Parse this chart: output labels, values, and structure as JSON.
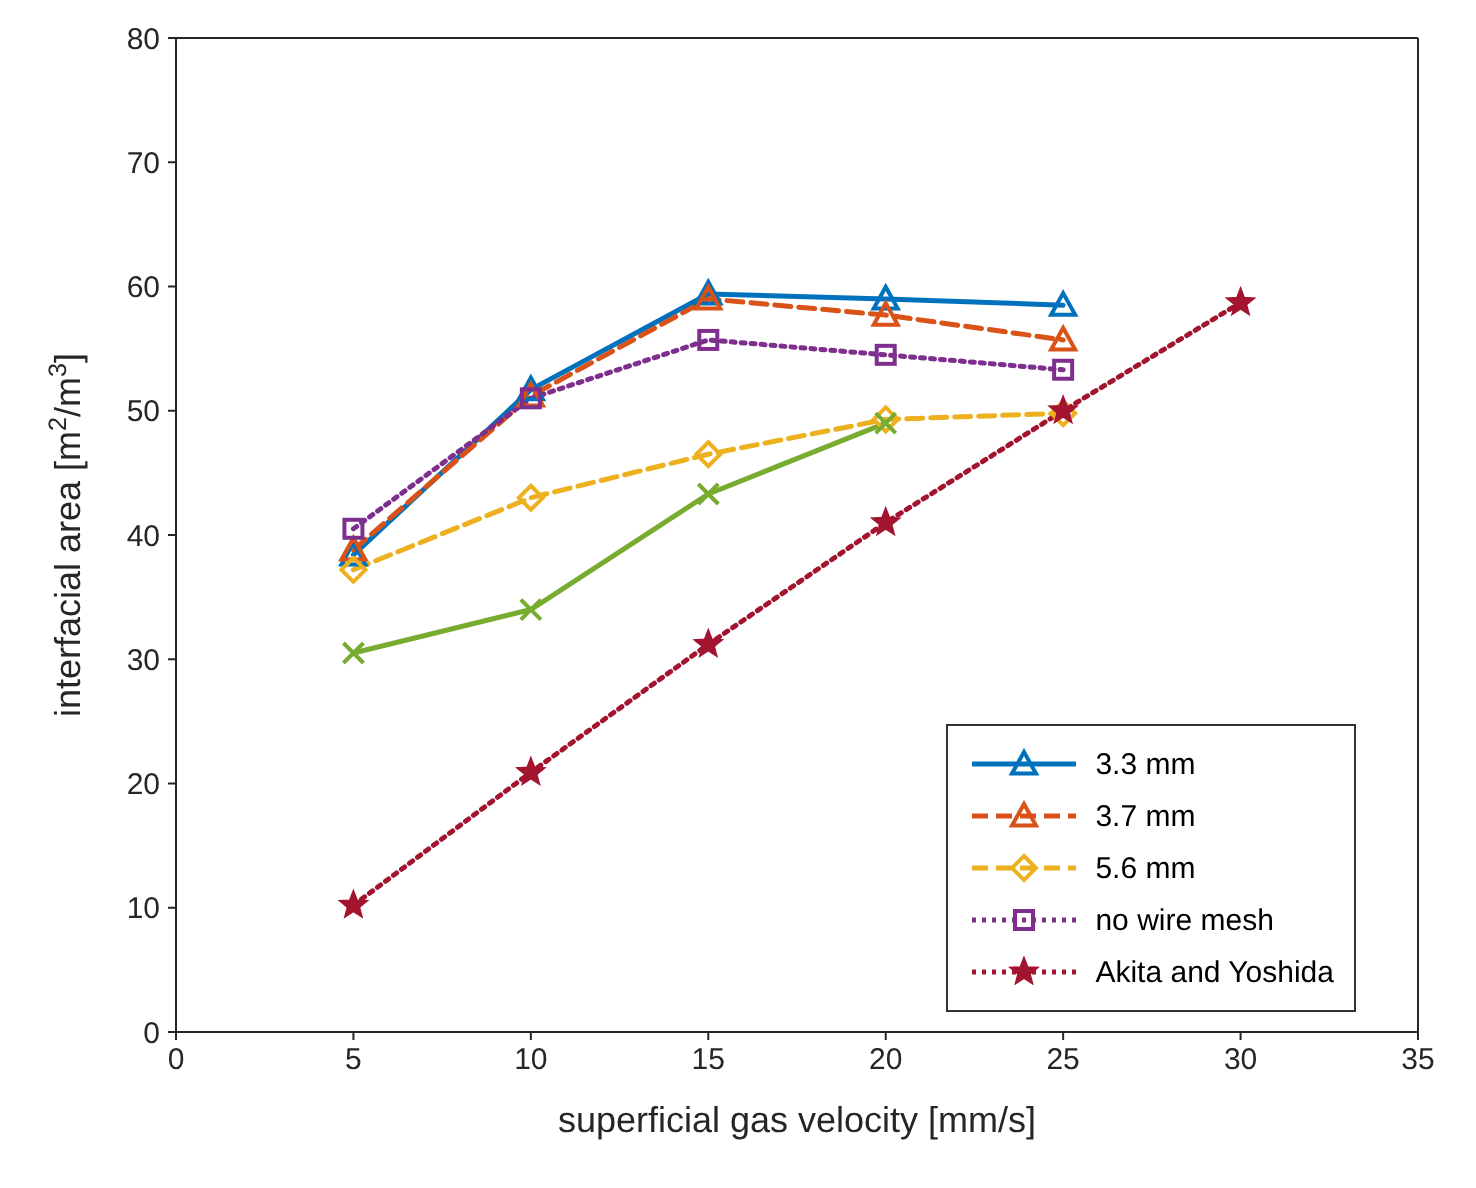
{
  "chart_data": {
    "type": "line",
    "xlabel": "superficial gas velocity [mm/s]",
    "ylabel": "interfacial area [m$^{2}$/m$^{3}$]",
    "x": [
      5,
      10,
      15,
      20,
      25,
      30
    ],
    "series": [
      {
        "name": "3.3 mm",
        "color": "#0072bd",
        "marker": "triangle",
        "line_style": "solid",
        "values": [
          38.4,
          51.7,
          59.4,
          59.0,
          58.5,
          null
        ]
      },
      {
        "name": "3.7 mm",
        "color": "#d95319",
        "marker": "triangle",
        "line_style": "dashed",
        "values": [
          38.8,
          51.2,
          59.0,
          57.7,
          55.7,
          null
        ]
      },
      {
        "name": "5.6 mm",
        "color": "#edb120",
        "marker": "diamond",
        "line_style": "dashed",
        "values": [
          37.2,
          43.0,
          46.5,
          49.3,
          49.8,
          null
        ]
      },
      {
        "name": "no wire mesh",
        "color": "#7e2f8e",
        "marker": "square",
        "line_style": "dotted",
        "values": [
          40.5,
          51.0,
          55.7,
          54.5,
          53.3,
          null
        ]
      },
      {
        "color": "#77ac30",
        "marker": "cross",
        "line_style": "solid",
        "values": [
          30.5,
          34.0,
          43.3,
          49.0,
          null,
          null
        ]
      },
      {
        "name": "Akita and Yoshida",
        "color": "#a2142f",
        "marker": "star",
        "line_style": "dotted",
        "values": [
          10.2,
          20.9,
          31.2,
          41.0,
          50.0,
          58.7
        ]
      }
    ],
    "xlim": [
      0,
      35
    ],
    "xticks": [
      0,
      5,
      10,
      15,
      20,
      25,
      30,
      35
    ],
    "ylim": [
      0,
      80
    ],
    "yticks": [
      0,
      10,
      20,
      30,
      40,
      50,
      60,
      70,
      80
    ],
    "grid": false,
    "legend": "bottom right"
  }
}
